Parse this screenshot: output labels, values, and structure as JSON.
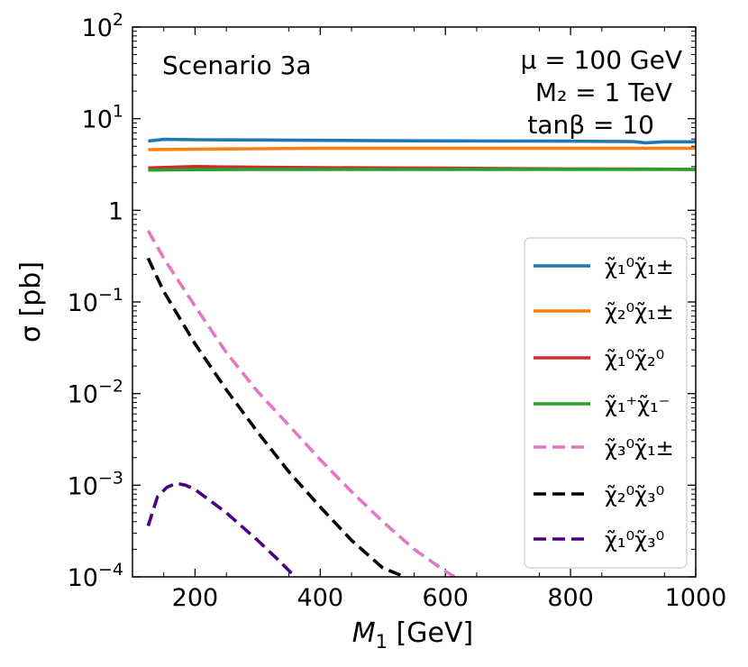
{
  "chart_data": {
    "type": "line",
    "title": "",
    "xlabel": "M",
    "xlabel_sub": "1",
    "xlabel_units": " [GeV]",
    "ylabel": "σ [pb]",
    "yscale": "log",
    "xlim": [
      100,
      1000
    ],
    "ylim": [
      0.0001,
      100
    ],
    "x_ticks": [
      200,
      400,
      600,
      800,
      1000
    ],
    "x_tick_labels": [
      "200",
      "400",
      "600",
      "800",
      "1000"
    ],
    "y_ticks": [
      {
        "value": 100,
        "base": "10",
        "exp": "2"
      },
      {
        "value": 10,
        "base": "10",
        "exp": "1"
      },
      {
        "value": 1,
        "base": "1",
        "exp": ""
      },
      {
        "value": 0.1,
        "base": "10",
        "exp": "−1"
      },
      {
        "value": 0.01,
        "base": "10",
        "exp": "−2"
      },
      {
        "value": 0.001,
        "base": "10",
        "exp": "−3"
      },
      {
        "value": 0.0001,
        "base": "10",
        "exp": "−4"
      }
    ],
    "annotations": {
      "scenario": "Scenario 3a",
      "mu": "μ = 100 GeV",
      "m2": "M₂ = 1 TeV",
      "tanb": "tanβ = 10"
    },
    "legend_position": "lower-right",
    "series": [
      {
        "name": "χ̃₁⁰χ̃₁±",
        "color": "#1f77b4",
        "dash": "solid",
        "x": [
          125,
          150,
          200,
          300,
          400,
          500,
          600,
          700,
          800,
          900,
          920,
          950,
          1000
        ],
        "y": [
          5.7,
          5.95,
          5.9,
          5.85,
          5.8,
          5.75,
          5.72,
          5.7,
          5.68,
          5.62,
          5.45,
          5.6,
          5.6
        ]
      },
      {
        "name": "χ̃₂⁰χ̃₁±",
        "color": "#ff7f0e",
        "dash": "solid",
        "x": [
          125,
          200,
          300,
          400,
          500,
          600,
          700,
          800,
          900,
          1000
        ],
        "y": [
          4.6,
          4.65,
          4.7,
          4.75,
          4.75,
          4.75,
          4.75,
          4.75,
          4.75,
          4.75
        ]
      },
      {
        "name": "χ̃₁⁰χ̃₂⁰",
        "color": "#d62728",
        "dash": "solid",
        "x": [
          125,
          200,
          300,
          400,
          500,
          600,
          700,
          800,
          900,
          1000
        ],
        "y": [
          2.9,
          3.0,
          2.95,
          2.92,
          2.9,
          2.88,
          2.85,
          2.83,
          2.82,
          2.8
        ]
      },
      {
        "name": "χ̃₁⁺χ̃₁⁻",
        "color": "#2ca02c",
        "dash": "solid",
        "x": [
          125,
          200,
          300,
          400,
          500,
          600,
          700,
          800,
          900,
          1000
        ],
        "y": [
          2.75,
          2.78,
          2.8,
          2.8,
          2.8,
          2.8,
          2.8,
          2.8,
          2.8,
          2.8
        ]
      },
      {
        "name": "χ̃₃⁰χ̃₁±",
        "color": "#e377c2",
        "dash": "dashed",
        "x": [
          125,
          150,
          200,
          250,
          300,
          350,
          400,
          450,
          500,
          550,
          600,
          615
        ],
        "y": [
          0.6,
          0.3,
          0.09,
          0.028,
          0.0105,
          0.0045,
          0.0019,
          0.00085,
          0.0004,
          0.0002,
          0.000115,
          0.0001
        ]
      },
      {
        "name": "χ̃₂⁰χ̃₃⁰",
        "color": "#000000",
        "dash": "dashed",
        "x": [
          125,
          150,
          200,
          250,
          300,
          350,
          400,
          450,
          500,
          535
        ],
        "y": [
          0.3,
          0.13,
          0.035,
          0.011,
          0.0038,
          0.0014,
          0.00058,
          0.00025,
          0.000125,
          0.0001
        ]
      },
      {
        "name": "χ̃₁⁰χ̃₃⁰",
        "color": "#4b0082",
        "dash": "dashed",
        "x": [
          125,
          140,
          155,
          170,
          185,
          200,
          250,
          300,
          330,
          360
        ],
        "y": [
          0.00036,
          0.00075,
          0.00095,
          0.00105,
          0.001,
          0.0009,
          0.0005,
          0.00025,
          0.00016,
          0.0001
        ]
      }
    ]
  }
}
